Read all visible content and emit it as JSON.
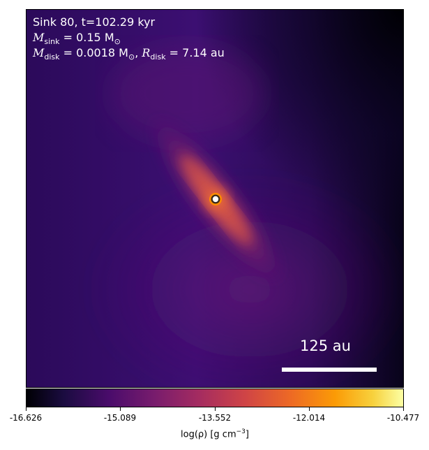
{
  "header": {
    "line1": "Sink 80, t=102.29 kyr",
    "msink_symbol": "M",
    "msink_sub": "sink",
    "msink_value": " = 0.15 M",
    "msink_unit_sub": "⊙",
    "mdisk_symbol": "M",
    "mdisk_sub": "disk",
    "mdisk_value": " = 0.0018 M",
    "mdisk_unit_sub": "⊙",
    "rdisk_sep": ", ",
    "rdisk_symbol": "R",
    "rdisk_sub": "disk",
    "rdisk_value": " = 7.14 au"
  },
  "scale_bar": {
    "label": "125 au"
  },
  "colorbar": {
    "ticks": [
      "-16.626",
      "-15.089",
      "-13.552",
      "-12.014",
      "-10.477"
    ],
    "label_main": "log(ρ) [g cm",
    "label_exp": "−3",
    "label_end": "]"
  },
  "colors": {
    "background_dark": "#3b0f70",
    "filament": "#e15a3e",
    "sink_marker": "#ff8c00"
  },
  "icons": {
    "sink": "sink-marker-icon"
  }
}
